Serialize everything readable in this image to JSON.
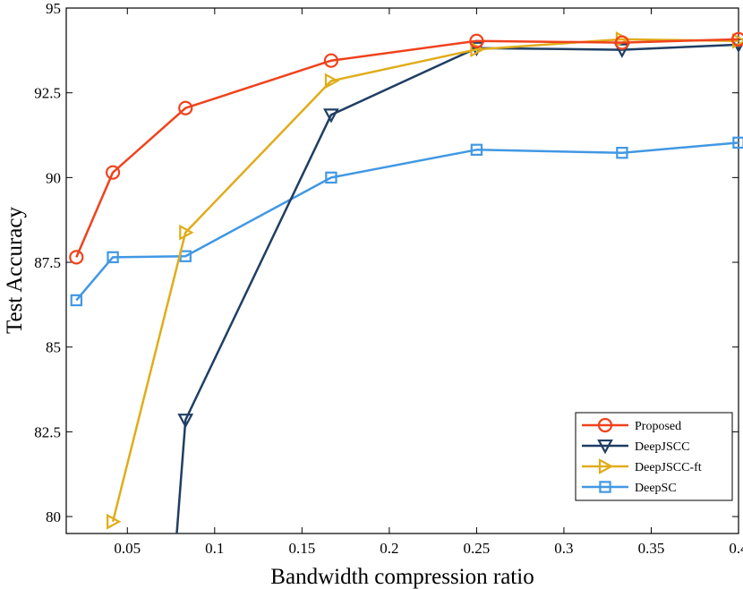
{
  "chart_data": {
    "type": "line",
    "title": "",
    "xlabel": "Bandwidth compression ratio",
    "ylabel": "Test Accuracy",
    "xlim": [
      0.015,
      0.4
    ],
    "ylim": [
      79.5,
      95
    ],
    "xticks": [
      0.05,
      0.1,
      0.15,
      0.2,
      0.25,
      0.3,
      0.35,
      0.4
    ],
    "xtick_labels": [
      "0.05",
      "0.1",
      "0.15",
      "0.2",
      "0.25",
      "0.3",
      "0.35",
      "0.4"
    ],
    "yticks": [
      80,
      82.5,
      85,
      87.5,
      90,
      92.5,
      95
    ],
    "ytick_labels": [
      "80",
      "82.5",
      "85",
      "87.5",
      "90",
      "92.5",
      "95"
    ],
    "grid": false,
    "legend_position": "bottom-right",
    "series": [
      {
        "name": "Proposed",
        "color": "#f0421c",
        "marker": "circle",
        "x": [
          0.0208,
          0.0417,
          0.0833,
          0.1667,
          0.25,
          0.3333,
          0.4
        ],
        "y": [
          87.65,
          90.15,
          92.05,
          93.45,
          94.03,
          93.98,
          94.08
        ]
      },
      {
        "name": "DeepJSCC",
        "color": "#1f3e63",
        "marker": "triangle-down",
        "x": [
          0.0783,
          0.0833,
          0.1667,
          0.25,
          0.3333,
          0.4
        ],
        "y": [
          79.5,
          82.85,
          91.85,
          93.82,
          93.77,
          93.92
        ]
      },
      {
        "name": "DeepJSCC-ft",
        "color": "#e0ac1a",
        "marker": "triangle-right",
        "x": [
          0.0417,
          0.0833,
          0.1667,
          0.25,
          0.3333,
          0.4
        ],
        "y": [
          79.85,
          88.38,
          92.85,
          93.78,
          94.08,
          94.03
        ]
      },
      {
        "name": "DeepSC",
        "color": "#4198e4",
        "marker": "square",
        "x": [
          0.0208,
          0.0417,
          0.0833,
          0.1667,
          0.25,
          0.3333,
          0.4
        ],
        "y": [
          86.38,
          87.65,
          87.68,
          90.0,
          90.82,
          90.73,
          91.03
        ]
      }
    ]
  }
}
